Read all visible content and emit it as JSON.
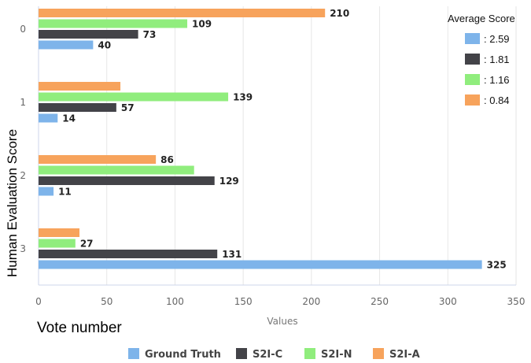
{
  "chart_data": {
    "type": "bar",
    "orientation": "horizontal",
    "categories": [
      "0",
      "1",
      "2",
      "3"
    ],
    "series": [
      {
        "name": "Ground Truth",
        "color": "#7eb4ea",
        "values": [
          40,
          14,
          11,
          325
        ],
        "labels": [
          "40",
          "14",
          "11",
          "325"
        ]
      },
      {
        "name": "S2I-C",
        "color": "#434348",
        "values": [
          73,
          57,
          129,
          131
        ],
        "labels": [
          "73",
          "57",
          "129",
          "131"
        ]
      },
      {
        "name": "S2I-N",
        "color": "#90ed7d",
        "values": [
          109,
          139,
          114,
          27
        ],
        "labels": [
          "109",
          "139",
          "",
          "27"
        ]
      },
      {
        "name": "S2I-A",
        "color": "#f7a35c",
        "values": [
          210,
          60,
          86,
          30
        ],
        "labels": [
          "210",
          "",
          "86",
          ""
        ]
      }
    ],
    "xlabel": "Values",
    "ylabel": "Human Evaluation Score",
    "xlim": [
      0,
      350
    ],
    "xticks": [
      "0",
      "50",
      "100",
      "150",
      "200",
      "250",
      "300",
      "350"
    ],
    "grid": true,
    "legend_position": "bottom",
    "annotation": "Vote  number",
    "score_legend": {
      "title": "Average Score",
      "position": "top-right",
      "entries": [
        {
          "label": ": 2.59",
          "color": "#7eb4ea"
        },
        {
          "label": ": 1.81",
          "color": "#434348"
        },
        {
          "label": ": 1.16",
          "color": "#90ed7d"
        },
        {
          "label": ": 0.84",
          "color": "#f7a35c"
        }
      ]
    }
  }
}
